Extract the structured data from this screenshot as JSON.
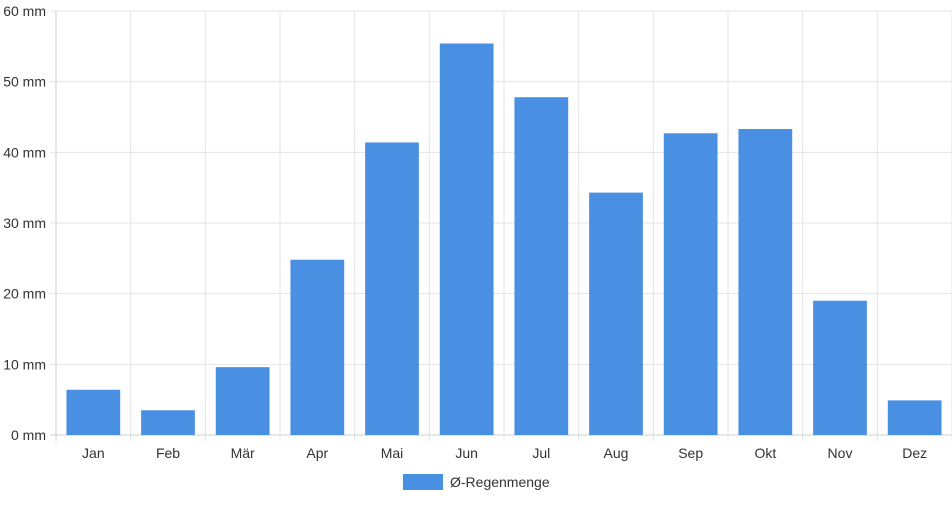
{
  "chart_data": {
    "type": "bar",
    "categories": [
      "Jan",
      "Feb",
      "Mär",
      "Apr",
      "Mai",
      "Jun",
      "Jul",
      "Aug",
      "Sep",
      "Okt",
      "Nov",
      "Dez"
    ],
    "series": [
      {
        "name": "Ø-Regenmenge",
        "values": [
          6.4,
          3.5,
          9.6,
          24.8,
          41.4,
          55.4,
          47.8,
          34.3,
          42.7,
          43.3,
          19.0,
          4.9
        ],
        "color": "#4a90e2"
      }
    ],
    "y_ticks": [
      "0 mm",
      "10 mm",
      "20 mm",
      "30 mm",
      "40 mm",
      "50 mm",
      "60 mm"
    ],
    "ylim": [
      0,
      60
    ],
    "yunit": "mm",
    "grid": true,
    "legend_position": "bottom",
    "title": "",
    "xlabel": "",
    "ylabel": ""
  }
}
